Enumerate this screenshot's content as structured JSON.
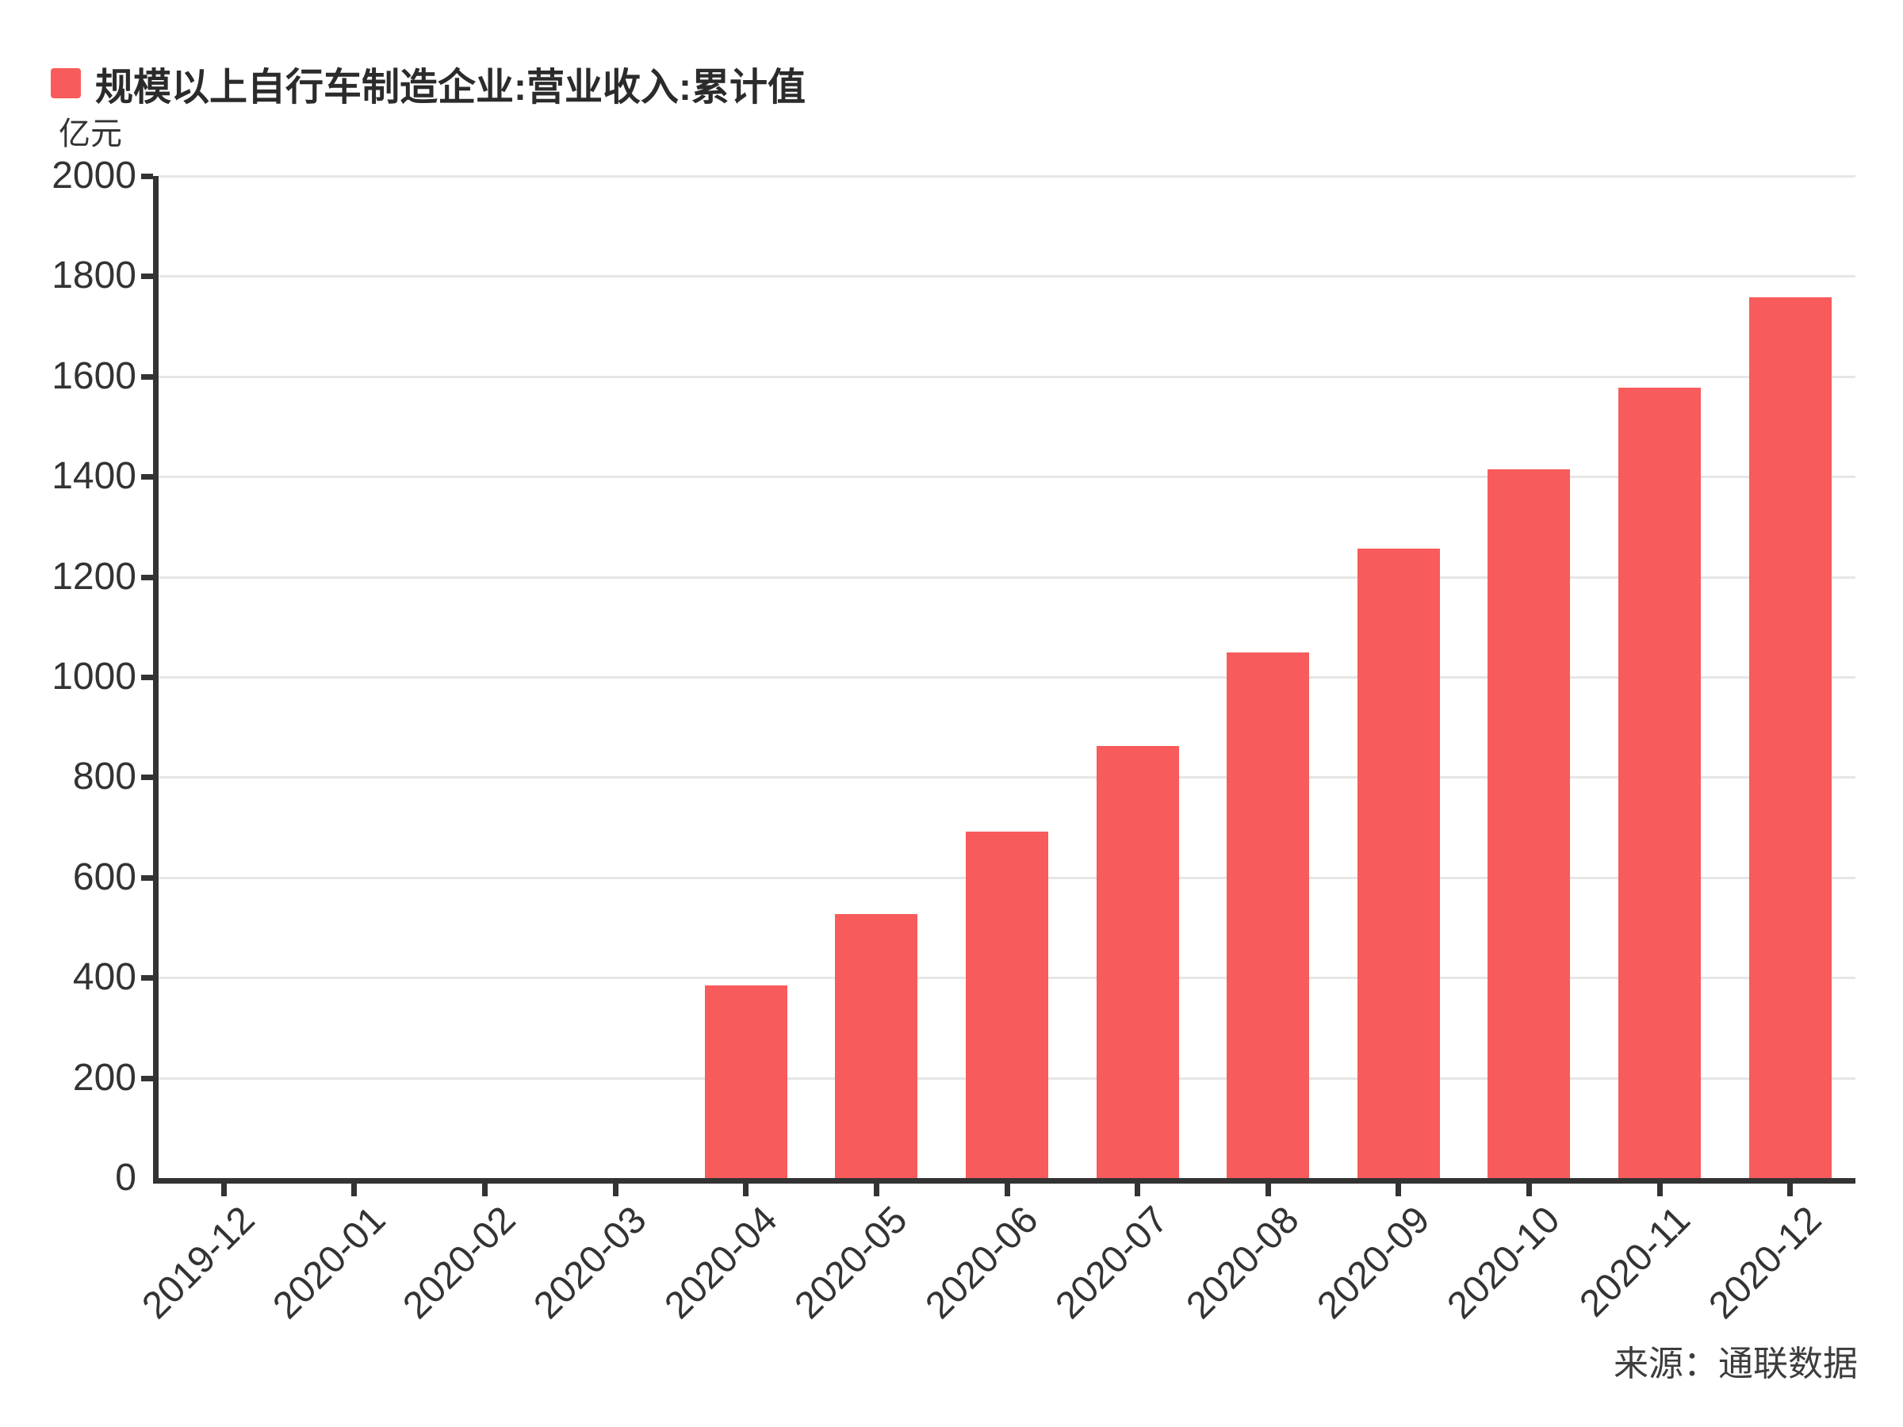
{
  "legend": {
    "label": "规模以上自行车制造企业:营业收入:累计值",
    "swatch_color": "#f85b5b"
  },
  "y_axis": {
    "unit": "亿元"
  },
  "source_label": "来源：通联数据",
  "colors": {
    "bar": "#f85b5b",
    "axis": "#333333",
    "gridline": "#e6e6e6",
    "text": "#333333",
    "title_text": "#2b2b2b",
    "background": "#ffffff"
  },
  "chart_data": {
    "type": "bar",
    "title": "规模以上自行车制造企业:营业收入:累计值",
    "unit": "亿元",
    "source": "来源：通联数据",
    "categories": [
      "2019-12",
      "2020-01",
      "2020-02",
      "2020-03",
      "2020-04",
      "2020-05",
      "2020-06",
      "2020-07",
      "2020-08",
      "2020-09",
      "2020-10",
      "2020-11",
      "2020-12"
    ],
    "values": [
      null,
      null,
      null,
      null,
      385,
      527,
      691,
      862,
      1049,
      1257,
      1415,
      1578,
      1758
    ],
    "ylim": [
      0,
      2000
    ],
    "yticks": [
      0,
      200,
      400,
      600,
      800,
      1000,
      1200,
      1400,
      1600,
      1800,
      2000
    ],
    "xlabel": "",
    "ylabel": "亿元",
    "grid": true,
    "legend_position": "top-left",
    "bar_color": "#f85b5b",
    "x_label_rotation_deg": 45
  }
}
